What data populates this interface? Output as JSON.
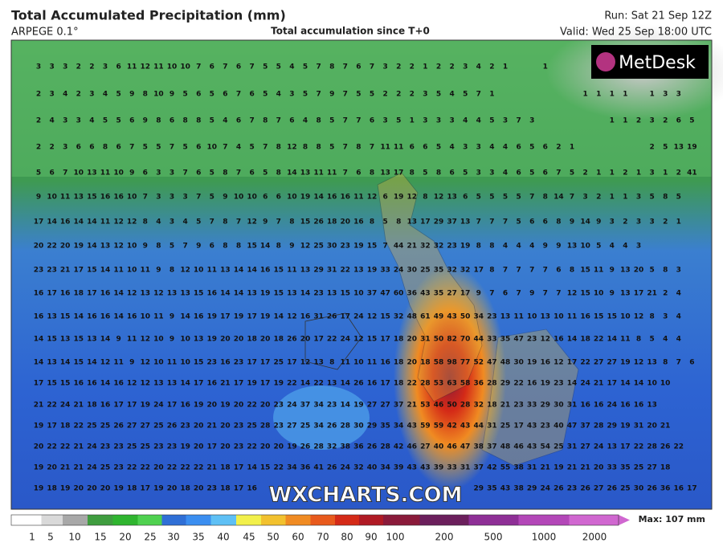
{
  "header": {
    "title": "Total Accumulated Precipitation (mm)",
    "model": "ARPEGE 0.1°",
    "subtitle": "Total accumulation since T+0",
    "run": "Run: Sat 21 Sep 12Z",
    "valid": "Valid: Wed 25 Sep 18:00 UTC"
  },
  "logos": {
    "metdesk": "MetDesk",
    "watermark": "WXCHARTS.COM"
  },
  "grid_values": [
    [
      3,
      3,
      3,
      2,
      2,
      3,
      6,
      11,
      12,
      11,
      10,
      10,
      7,
      6,
      7,
      6,
      7,
      5,
      5,
      4,
      5,
      7,
      8,
      7,
      6,
      7,
      3,
      2,
      2,
      1,
      2,
      2,
      3,
      4,
      2,
      1,
      null,
      null,
      1
    ],
    [
      2,
      3,
      4,
      2,
      3,
      4,
      5,
      9,
      8,
      10,
      9,
      5,
      6,
      5,
      6,
      7,
      6,
      5,
      4,
      3,
      5,
      7,
      9,
      7,
      5,
      5,
      2,
      2,
      2,
      3,
      5,
      4,
      5,
      7,
      1,
      null,
      null,
      null,
      null,
      null,
      null,
      1,
      1,
      1,
      1,
      null,
      1,
      3,
      3
    ],
    [
      2,
      4,
      3,
      3,
      4,
      5,
      5,
      6,
      9,
      8,
      6,
      8,
      8,
      5,
      4,
      6,
      7,
      8,
      7,
      6,
      4,
      8,
      5,
      7,
      7,
      6,
      3,
      5,
      1,
      3,
      3,
      3,
      4,
      4,
      5,
      3,
      7,
      3,
      null,
      null,
      null,
      null,
      null,
      1,
      1,
      2,
      3,
      2,
      6,
      5
    ],
    [
      2,
      2,
      3,
      6,
      6,
      8,
      6,
      7,
      5,
      5,
      7,
      5,
      6,
      10,
      7,
      4,
      5,
      7,
      8,
      12,
      8,
      8,
      5,
      7,
      8,
      7,
      11,
      11,
      6,
      6,
      5,
      4,
      3,
      3,
      4,
      4,
      6,
      5,
      6,
      2,
      1,
      null,
      null,
      null,
      null,
      null,
      2,
      5,
      13,
      19
    ],
    [
      5,
      6,
      7,
      10,
      13,
      11,
      10,
      9,
      6,
      3,
      3,
      7,
      6,
      5,
      8,
      7,
      6,
      5,
      8,
      14,
      13,
      11,
      11,
      7,
      6,
      8,
      13,
      17,
      8,
      5,
      8,
      6,
      5,
      3,
      3,
      4,
      6,
      5,
      6,
      7,
      5,
      2,
      1,
      1,
      2,
      1,
      3,
      1,
      2,
      41
    ],
    [
      9,
      10,
      11,
      13,
      15,
      16,
      16,
      10,
      7,
      3,
      3,
      3,
      7,
      5,
      9,
      10,
      10,
      6,
      6,
      10,
      19,
      14,
      16,
      16,
      11,
      12,
      6,
      19,
      12,
      8,
      12,
      13,
      6,
      5,
      5,
      5,
      5,
      7,
      8,
      14,
      7,
      3,
      2,
      1,
      1,
      3,
      5,
      8,
      5
    ],
    [
      17,
      14,
      16,
      14,
      14,
      11,
      12,
      12,
      8,
      4,
      3,
      4,
      5,
      7,
      8,
      7,
      12,
      9,
      7,
      8,
      15,
      26,
      18,
      20,
      16,
      8,
      5,
      8,
      13,
      17,
      29,
      37,
      13,
      7,
      7,
      7,
      5,
      6,
      6,
      8,
      9,
      14,
      9,
      3,
      2,
      3,
      3,
      2,
      1
    ],
    [
      20,
      22,
      20,
      19,
      14,
      13,
      12,
      10,
      9,
      8,
      5,
      7,
      9,
      6,
      8,
      8,
      15,
      14,
      8,
      9,
      12,
      25,
      30,
      23,
      19,
      15,
      7,
      44,
      21,
      32,
      32,
      23,
      19,
      8,
      8,
      4,
      4,
      4,
      9,
      9,
      13,
      10,
      5,
      4,
      4,
      3
    ],
    [
      23,
      23,
      21,
      17,
      15,
      14,
      11,
      10,
      11,
      9,
      8,
      12,
      10,
      11,
      13,
      14,
      14,
      16,
      15,
      11,
      13,
      29,
      31,
      22,
      13,
      19,
      33,
      24,
      30,
      25,
      35,
      32,
      32,
      17,
      8,
      7,
      7,
      7,
      7,
      6,
      8,
      15,
      11,
      9,
      13,
      20,
      5,
      8,
      3
    ],
    [
      16,
      17,
      16,
      18,
      17,
      16,
      14,
      12,
      13,
      12,
      13,
      13,
      15,
      16,
      14,
      14,
      13,
      19,
      15,
      13,
      14,
      23,
      13,
      15,
      10,
      37,
      47,
      60,
      36,
      43,
      35,
      27,
      17,
      9,
      7,
      6,
      7,
      9,
      7,
      7,
      12,
      15,
      10,
      9,
      13,
      17,
      21,
      2,
      4
    ],
    [
      16,
      13,
      15,
      14,
      16,
      16,
      14,
      16,
      10,
      11,
      9,
      14,
      16,
      19,
      17,
      19,
      17,
      19,
      14,
      12,
      16,
      31,
      26,
      17,
      24,
      12,
      15,
      32,
      48,
      61,
      49,
      43,
      50,
      34,
      23,
      13,
      11,
      10,
      13,
      10,
      11,
      16,
      15,
      15,
      10,
      12,
      8,
      3,
      4
    ],
    [
      14,
      15,
      13,
      15,
      13,
      14,
      9,
      11,
      12,
      10,
      9,
      10,
      13,
      19,
      20,
      20,
      18,
      20,
      18,
      26,
      20,
      17,
      22,
      24,
      12,
      15,
      17,
      18,
      20,
      31,
      50,
      82,
      70,
      44,
      33,
      35,
      47,
      23,
      12,
      16,
      14,
      18,
      22,
      14,
      11,
      8,
      5,
      4,
      4
    ],
    [
      14,
      13,
      14,
      15,
      14,
      12,
      11,
      9,
      12,
      10,
      11,
      10,
      15,
      23,
      16,
      23,
      17,
      17,
      25,
      17,
      12,
      13,
      8,
      11,
      10,
      11,
      16,
      18,
      20,
      18,
      58,
      98,
      77,
      52,
      47,
      48,
      30,
      19,
      16,
      12,
      17,
      22,
      27,
      27,
      19,
      12,
      13,
      8,
      7,
      6
    ],
    [
      17,
      15,
      15,
      16,
      16,
      14,
      16,
      12,
      12,
      13,
      13,
      14,
      17,
      16,
      21,
      17,
      19,
      17,
      19,
      22,
      14,
      22,
      13,
      14,
      26,
      16,
      17,
      18,
      22,
      28,
      53,
      63,
      58,
      36,
      28,
      29,
      22,
      16,
      19,
      23,
      14,
      24,
      21,
      17,
      14,
      14,
      10,
      10
    ],
    [
      21,
      22,
      24,
      21,
      18,
      16,
      17,
      17,
      19,
      24,
      17,
      16,
      19,
      20,
      19,
      20,
      22,
      20,
      23,
      24,
      37,
      34,
      23,
      14,
      19,
      27,
      27,
      37,
      21,
      53,
      46,
      50,
      28,
      32,
      18,
      21,
      23,
      33,
      29,
      30,
      31,
      16,
      16,
      24,
      16,
      16,
      13
    ],
    [
      19,
      17,
      18,
      22,
      25,
      25,
      26,
      27,
      27,
      25,
      26,
      23,
      20,
      21,
      20,
      23,
      25,
      28,
      23,
      27,
      25,
      34,
      26,
      28,
      30,
      29,
      35,
      34,
      43,
      59,
      59,
      42,
      43,
      44,
      31,
      25,
      17,
      43,
      23,
      40,
      47,
      37,
      28,
      29,
      19,
      31,
      20,
      21
    ],
    [
      20,
      22,
      22,
      21,
      24,
      23,
      23,
      25,
      25,
      23,
      23,
      19,
      20,
      17,
      20,
      23,
      22,
      20,
      20,
      19,
      26,
      28,
      32,
      38,
      36,
      26,
      28,
      42,
      46,
      27,
      40,
      46,
      47,
      38,
      37,
      48,
      46,
      43,
      54,
      25,
      31,
      27,
      24,
      13,
      17,
      22,
      28,
      26,
      22
    ],
    [
      19,
      20,
      21,
      21,
      24,
      25,
      23,
      22,
      22,
      20,
      22,
      22,
      22,
      21,
      18,
      17,
      14,
      15,
      22,
      34,
      36,
      41,
      26,
      24,
      32,
      40,
      34,
      39,
      43,
      43,
      39,
      33,
      31,
      37,
      42,
      55,
      38,
      31,
      21,
      19,
      21,
      21,
      20,
      33,
      35,
      25,
      27,
      18
    ],
    [
      19,
      18,
      19,
      20,
      20,
      20,
      19,
      18,
      17,
      19,
      20,
      18,
      20,
      23,
      18,
      17,
      16,
      null,
      null,
      null,
      null,
      null,
      null,
      null,
      null,
      null,
      null,
      null,
      null,
      null,
      null,
      null,
      null,
      29,
      35,
      43,
      38,
      29,
      24,
      26,
      23,
      26,
      27,
      26,
      25,
      30,
      26,
      36,
      16,
      17
    ]
  ],
  "colorbar": {
    "labels": [
      1,
      5,
      10,
      15,
      20,
      25,
      30,
      35,
      40,
      45,
      50,
      60,
      70,
      80,
      90,
      100,
      200,
      500,
      1000,
      2000
    ],
    "colors": [
      "#ffffff",
      "#d9d9d9",
      "#a8a8a8",
      "#3f9d3f",
      "#2fb52f",
      "#4fd14f",
      "#2f6fd6",
      "#3b8ef0",
      "#5ec0f5",
      "#f2f04a",
      "#f2c12e",
      "#f08b22",
      "#e85a1c",
      "#d42a17",
      "#b01a24",
      "#8a1a3a",
      "#6b1f5c",
      "#8e2f96",
      "#b347b8",
      "#d067d0"
    ],
    "max": "Max: 107 mm"
  }
}
